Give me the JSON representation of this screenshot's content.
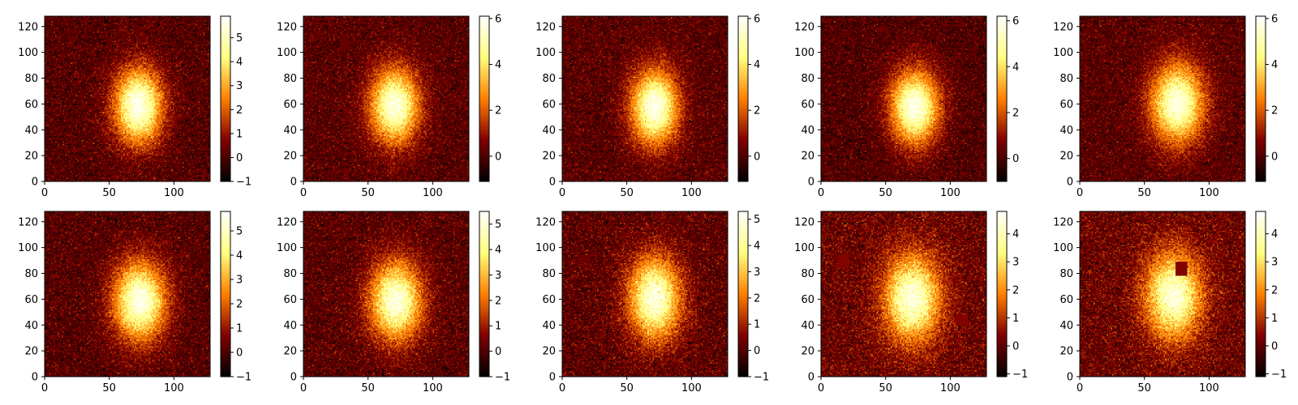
{
  "chart_data": {
    "type": "heatmap",
    "colormap": "afmhot",
    "grid": false,
    "layout": "2 rows x 5 columns",
    "panels": [
      {
        "image_size": [
          128,
          128
        ],
        "xlim": [
          0,
          128
        ],
        "ylim": [
          0,
          128
        ],
        "xticks": [
          0,
          50,
          100
        ],
        "yticks": [
          0,
          20,
          40,
          60,
          80,
          100,
          120
        ],
        "blob": {
          "cx": 72,
          "cy": 58,
          "sx": 13,
          "sy": 20,
          "peak": 5.6
        },
        "patches": [],
        "colorbar": {
          "range": [
            -1,
            5.9
          ],
          "ticks": [
            -1,
            0,
            1,
            2,
            3,
            4,
            5
          ]
        }
      },
      {
        "image_size": [
          128,
          128
        ],
        "xlim": [
          0,
          128
        ],
        "ylim": [
          0,
          128
        ],
        "xticks": [
          0,
          50,
          100
        ],
        "yticks": [
          0,
          20,
          40,
          60,
          80,
          100,
          120
        ],
        "blob": {
          "cx": 70,
          "cy": 58,
          "sx": 13,
          "sy": 20,
          "peak": 5.6
        },
        "patches": [
          {
            "x": 28,
            "y": 103,
            "w": 8,
            "h": 8,
            "level": 0.3
          }
        ],
        "colorbar": {
          "range": [
            -1.1,
            6.1
          ],
          "ticks": [
            0,
            2,
            4,
            6
          ]
        }
      },
      {
        "image_size": [
          128,
          128
        ],
        "xlim": [
          0,
          128
        ],
        "ylim": [
          0,
          128
        ],
        "xticks": [
          0,
          50,
          100
        ],
        "yticks": [
          0,
          20,
          40,
          60,
          80,
          100,
          120
        ],
        "blob": {
          "cx": 71,
          "cy": 57,
          "sx": 12.5,
          "sy": 20,
          "peak": 5.8
        },
        "patches": [],
        "colorbar": {
          "range": [
            -1.1,
            6.1
          ],
          "ticks": [
            0,
            2,
            4,
            6
          ]
        }
      },
      {
        "image_size": [
          128,
          128
        ],
        "xlim": [
          0,
          128
        ],
        "ylim": [
          0,
          128
        ],
        "xticks": [
          0,
          50,
          100
        ],
        "yticks": [
          0,
          20,
          40,
          60,
          80,
          100,
          120
        ],
        "blob": {
          "cx": 72,
          "cy": 57,
          "sx": 13,
          "sy": 20,
          "peak": 5.8
        },
        "patches": [],
        "colorbar": {
          "range": [
            -1.0,
            6.2
          ],
          "ticks": [
            0,
            2,
            4,
            6
          ]
        }
      },
      {
        "image_size": [
          128,
          128
        ],
        "xlim": [
          0,
          128
        ],
        "ylim": [
          0,
          128
        ],
        "xticks": [
          0,
          50,
          100
        ],
        "yticks": [
          0,
          20,
          40,
          60,
          80,
          100,
          120
        ],
        "blob": {
          "cx": 75,
          "cy": 60,
          "sx": 14,
          "sy": 21,
          "peak": 5.6
        },
        "patches": [],
        "colorbar": {
          "range": [
            -1.1,
            6.1
          ],
          "ticks": [
            0,
            2,
            4,
            6
          ]
        }
      },
      {
        "image_size": [
          128,
          128
        ],
        "xlim": [
          0,
          128
        ],
        "ylim": [
          0,
          128
        ],
        "xticks": [
          0,
          50,
          100
        ],
        "yticks": [
          0,
          20,
          40,
          60,
          80,
          100,
          120
        ],
        "blob": {
          "cx": 73,
          "cy": 58,
          "sx": 14,
          "sy": 21,
          "peak": 5.4
        },
        "patches": [],
        "colorbar": {
          "range": [
            -1,
            5.8
          ],
          "ticks": [
            -1,
            0,
            1,
            2,
            3,
            4,
            5
          ]
        }
      },
      {
        "image_size": [
          128,
          128
        ],
        "xlim": [
          0,
          128
        ],
        "ylim": [
          0,
          128
        ],
        "xticks": [
          0,
          50,
          100
        ],
        "yticks": [
          0,
          20,
          40,
          60,
          80,
          100,
          120
        ],
        "blob": {
          "cx": 71,
          "cy": 58,
          "sx": 14,
          "sy": 21,
          "peak": 5.0
        },
        "patches": [],
        "colorbar": {
          "range": [
            -1,
            5.5
          ],
          "ticks": [
            -1,
            0,
            1,
            2,
            3,
            4,
            5
          ]
        }
      },
      {
        "image_size": [
          128,
          128
        ],
        "xlim": [
          0,
          128
        ],
        "ylim": [
          0,
          128
        ],
        "xticks": [
          0,
          50,
          100
        ],
        "yticks": [
          0,
          20,
          40,
          60,
          80,
          100,
          120
        ],
        "blob": {
          "cx": 71,
          "cy": 60,
          "sx": 14,
          "sy": 22,
          "peak": 4.8
        },
        "patches": [
          {
            "x": 12,
            "y": 88,
            "w": 10,
            "h": 6,
            "level": 0.3
          }
        ],
        "colorbar": {
          "range": [
            -1,
            5.3
          ],
          "ticks": [
            -1,
            0,
            1,
            2,
            3,
            4,
            5
          ]
        }
      },
      {
        "image_size": [
          128,
          128
        ],
        "xlim": [
          0,
          128
        ],
        "ylim": [
          0,
          128
        ],
        "xticks": [
          0,
          50,
          100
        ],
        "yticks": [
          0,
          20,
          40,
          60,
          80,
          100,
          120
        ],
        "blob": {
          "cx": 70,
          "cy": 60,
          "sx": 15,
          "sy": 23,
          "peak": 4.3
        },
        "patches": [
          {
            "x": 13,
            "y": 84,
            "w": 8,
            "h": 10,
            "level": 0.4
          },
          {
            "x": 104,
            "y": 40,
            "w": 10,
            "h": 8,
            "level": 0.4
          }
        ],
        "colorbar": {
          "range": [
            -1.1,
            4.8
          ],
          "ticks": [
            -1,
            0,
            1,
            2,
            3,
            4
          ]
        }
      },
      {
        "image_size": [
          128,
          128
        ],
        "xlim": [
          0,
          128
        ],
        "ylim": [
          0,
          128
        ],
        "xticks": [
          0,
          50,
          100
        ],
        "yticks": [
          0,
          20,
          40,
          60,
          80,
          100,
          120
        ],
        "blob": {
          "cx": 72,
          "cy": 62,
          "sx": 15,
          "sy": 23,
          "peak": 4.3
        },
        "patches": [
          {
            "x": 74,
            "y": 78,
            "w": 9,
            "h": 11,
            "level": 0.4
          }
        ],
        "colorbar": {
          "range": [
            -1.1,
            4.8
          ],
          "ticks": [
            -1,
            0,
            1,
            2,
            3,
            4
          ]
        }
      }
    ]
  }
}
